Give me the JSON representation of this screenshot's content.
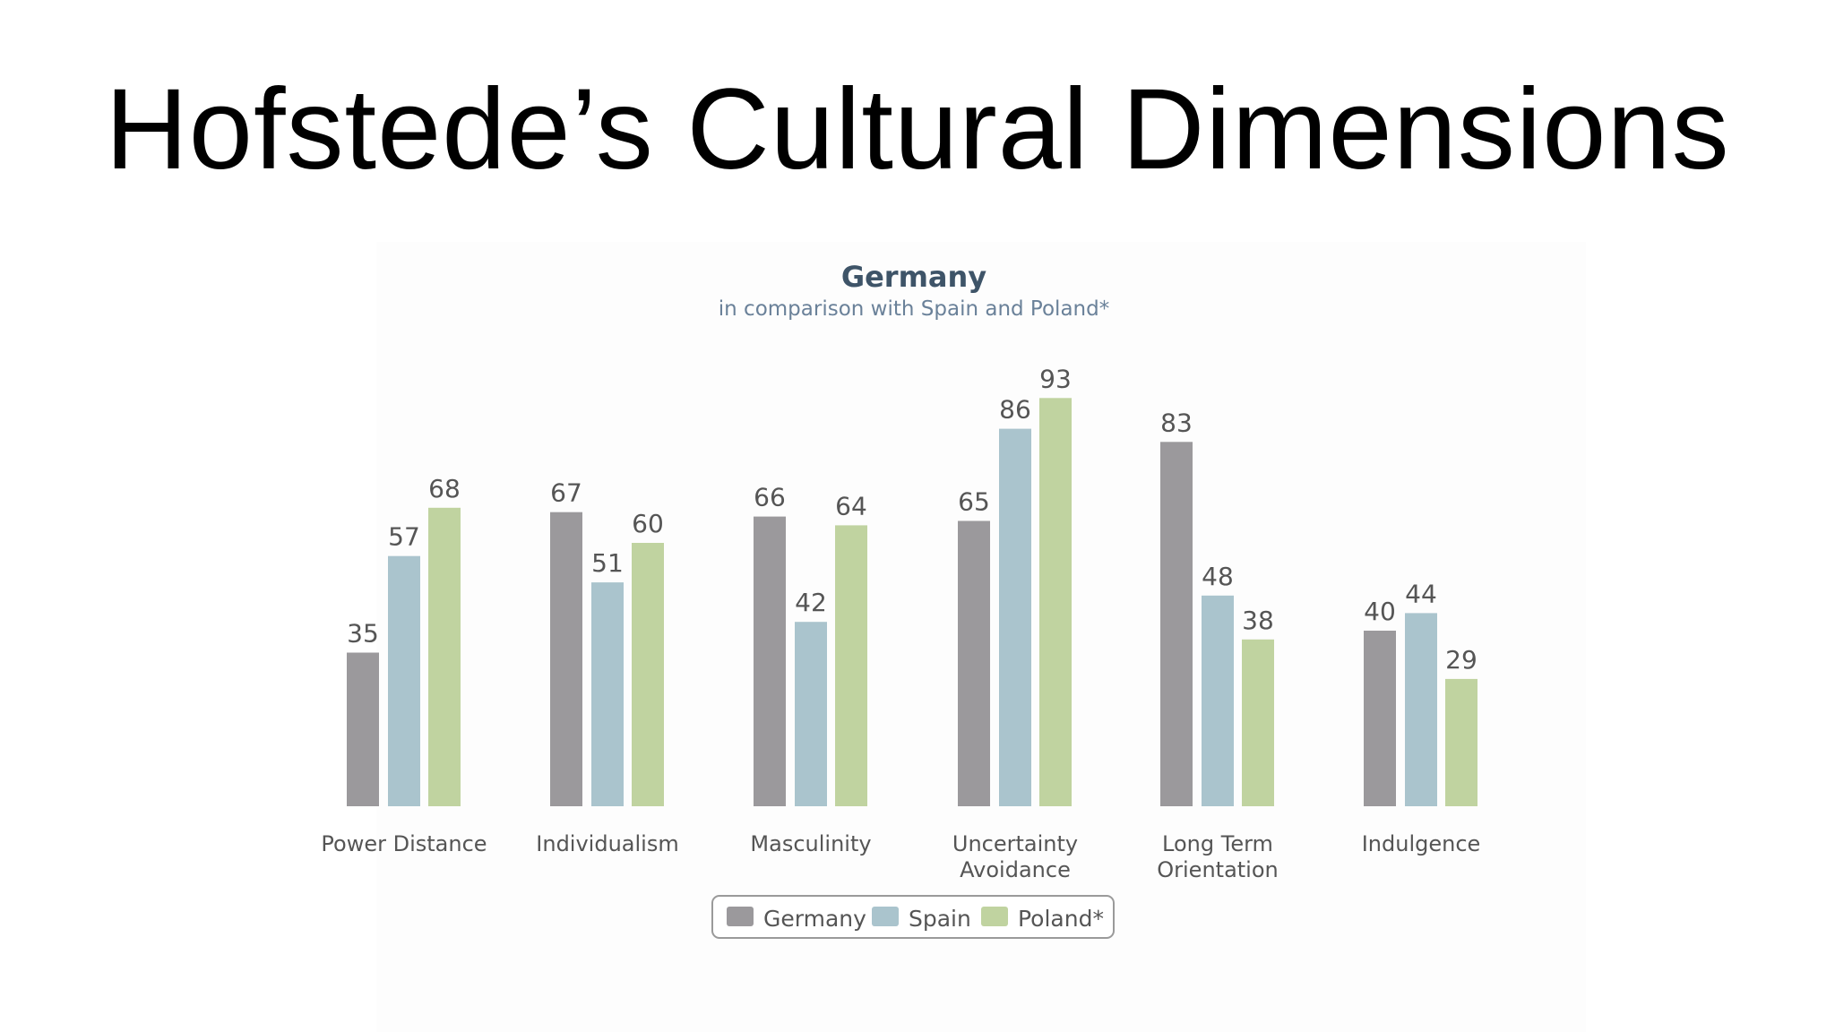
{
  "slide": {
    "title": "Hofstede’s Cultural Dimensions"
  },
  "chart_data": {
    "type": "bar",
    "title": "Germany",
    "subtitle": "in comparison with Spain and Poland*",
    "categories": [
      [
        "Power Distance"
      ],
      [
        "Individualism"
      ],
      [
        "Masculinity"
      ],
      [
        "Uncertainty",
        "Avoidance"
      ],
      [
        "Long Term",
        "Orientation"
      ],
      [
        "Indulgence"
      ]
    ],
    "series": [
      {
        "name": "Germany",
        "color": "#9b999c",
        "values": [
          35,
          67,
          66,
          65,
          83,
          40
        ]
      },
      {
        "name": "Spain",
        "color": "#aac4cd",
        "values": [
          57,
          51,
          42,
          86,
          48,
          44
        ]
      },
      {
        "name": "Poland*",
        "color": "#c0d3a0",
        "values": [
          68,
          60,
          64,
          93,
          38,
          29
        ]
      }
    ],
    "ylim": [
      0,
      100
    ],
    "grid": false,
    "legend_position": "bottom-center",
    "colors": {
      "title": "#3e5468",
      "subtitle": "#6a8199",
      "labels": "#555555",
      "legend_border": "#9a9a9a"
    }
  }
}
